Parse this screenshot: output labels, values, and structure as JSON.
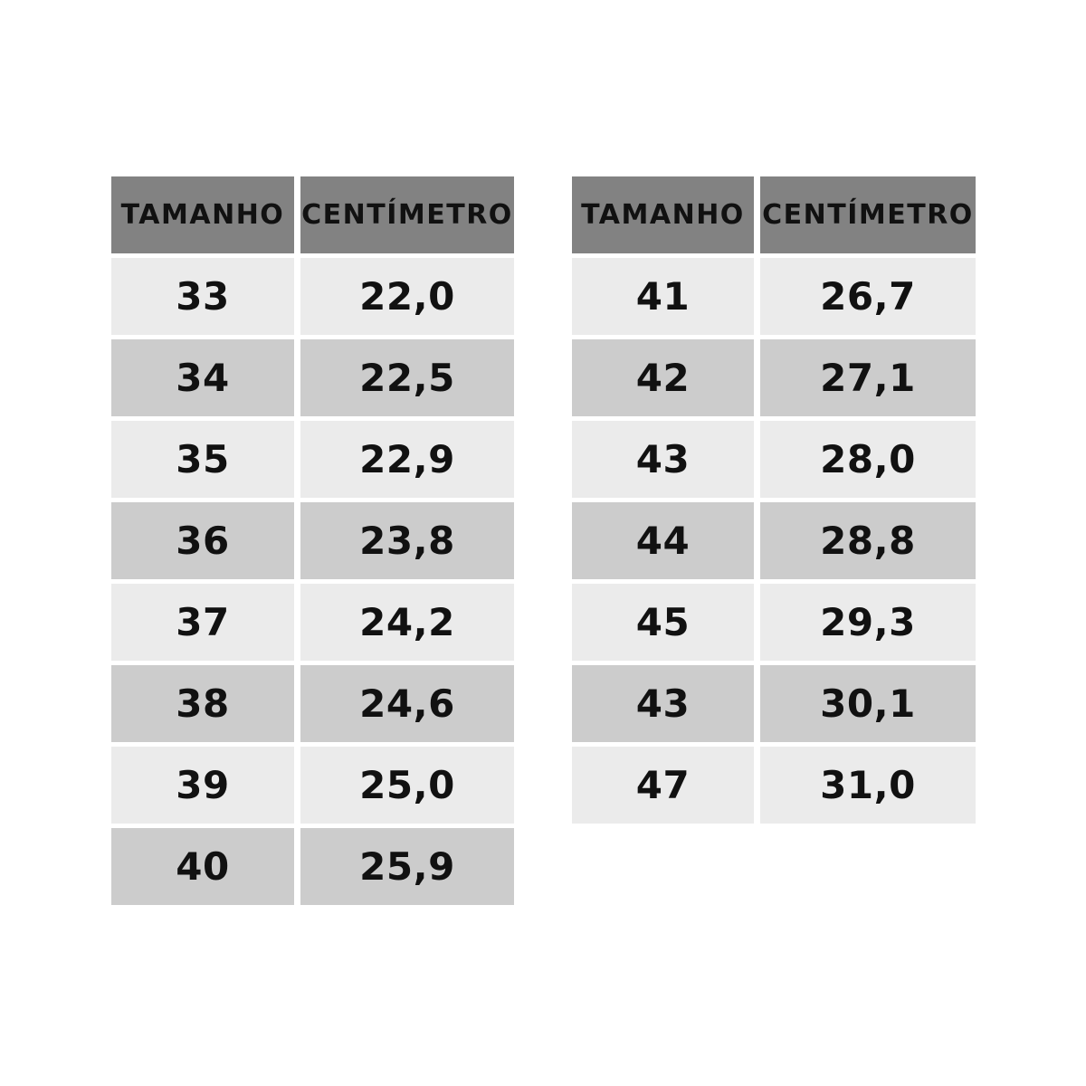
{
  "colors": {
    "header_bg": "#828282",
    "row_light": "#ebebeb",
    "row_dark": "#cccccc",
    "text": "#111111",
    "background": "#ffffff"
  },
  "chart_data": [
    {
      "type": "table",
      "title": "",
      "columns": [
        "TAMANHO",
        "CENTÍMETRO"
      ],
      "rows": [
        [
          "33",
          "22,0"
        ],
        [
          "34",
          "22,5"
        ],
        [
          "35",
          "22,9"
        ],
        [
          "36",
          "23,8"
        ],
        [
          "37",
          "24,2"
        ],
        [
          "38",
          "24,6"
        ],
        [
          "39",
          "25,0"
        ],
        [
          "40",
          "25,9"
        ]
      ]
    },
    {
      "type": "table",
      "title": "",
      "columns": [
        "TAMANHO",
        "CENTÍMETRO"
      ],
      "rows": [
        [
          "41",
          "26,7"
        ],
        [
          "42",
          "27,1"
        ],
        [
          "43",
          "28,0"
        ],
        [
          "44",
          "28,8"
        ],
        [
          "45",
          "29,3"
        ],
        [
          "43",
          "30,1"
        ],
        [
          "47",
          "31,0"
        ]
      ]
    }
  ]
}
